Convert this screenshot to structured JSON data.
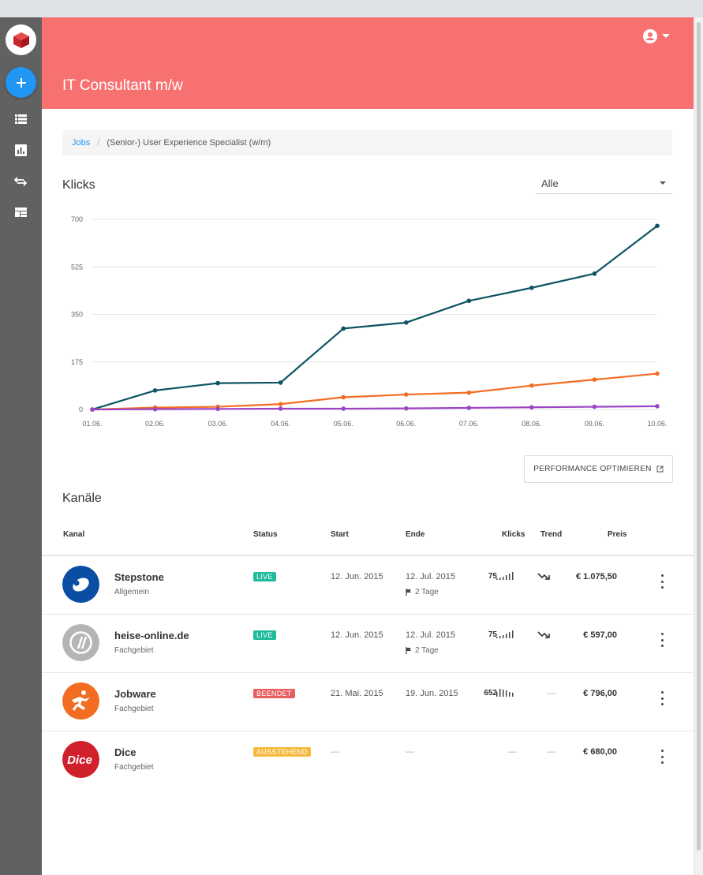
{
  "app": {
    "title": "IT Consultant m/w"
  },
  "sidebar": {
    "items": [
      {
        "name": "add",
        "icon": "plus-icon"
      },
      {
        "name": "list",
        "icon": "list-icon"
      },
      {
        "name": "stats",
        "icon": "bar-chart-icon"
      },
      {
        "name": "transfer",
        "icon": "swap-icon"
      },
      {
        "name": "dashboard",
        "icon": "dashboard-icon"
      }
    ]
  },
  "breadcrumb": {
    "root": "Jobs",
    "separator": "/",
    "current": "(Senior-) User Experience Specialist (w/m)"
  },
  "chart_section": {
    "title": "Klicks",
    "filter_value": "Alle"
  },
  "chart_data": {
    "type": "line",
    "title": "",
    "xlabel": "",
    "ylabel": "",
    "categories": [
      "01.06.",
      "02.06.",
      "03.06.",
      "04.06.",
      "05.06.",
      "06.06.",
      "07.06.",
      "08.06.",
      "09.06.",
      "10.06."
    ],
    "y_ticks": [
      0,
      175,
      350,
      525,
      700
    ],
    "ylim": [
      0,
      700
    ],
    "grid": true,
    "series": [
      {
        "color": "#0c5462",
        "values": [
          0,
          70,
          97,
          99,
          298,
          320,
          400,
          448,
          500,
          676
        ]
      },
      {
        "color": "#f26c22",
        "values": [
          0,
          7,
          10,
          20,
          45,
          55,
          62,
          88,
          110,
          132
        ]
      },
      {
        "color": "#9b44c5",
        "values": [
          0,
          1,
          2,
          3,
          3,
          4,
          6,
          8,
          10,
          12
        ]
      }
    ]
  },
  "performance_button": {
    "label": "PERFORMANCE OPTIMIEREN"
  },
  "channels": {
    "title": "Kanäle",
    "columns": {
      "kanal": "Kanal",
      "status": "Status",
      "start": "Start",
      "ende": "Ende",
      "klicks": "Klicks",
      "trend": "Trend",
      "preis": "Preis"
    },
    "rows": [
      {
        "name": "Stepstone",
        "category": "Allgemein",
        "status": "LIVE",
        "status_color": "#1ebc9c",
        "start": "12. Jun. 2015",
        "end": "12. Jul. 2015",
        "remaining": "2 Tage",
        "klicks": "75",
        "trend": "down",
        "price": "€ 1.075,50",
        "logo_color": "#0a4ea3"
      },
      {
        "name": "heise-online.de",
        "category": "Fachgebiet",
        "status": "LIVE",
        "status_color": "#1ebc9c",
        "start": "12. Jun. 2015",
        "end": "12. Jul. 2015",
        "remaining": "2 Tage",
        "klicks": "75",
        "trend": "down",
        "price": "€ 597,00",
        "logo_color": "#b5b5b5"
      },
      {
        "name": "Jobware",
        "category": "Fachgebiet",
        "status": "BEENDET",
        "status_color": "#e85d5d",
        "start": "21. Mai. 2015",
        "end": "19. Jun. 2015",
        "klicks": "652",
        "trend_text": "—",
        "price": "€ 796,00",
        "logo_color": "#f26c22"
      },
      {
        "name": "Dice",
        "category": "Fachgebiet",
        "status": "AUSSTEHEND",
        "status_color": "#f6b93b",
        "start_text": "—",
        "end_text": "—",
        "klicks_text": "—",
        "trend_text": "—",
        "price": "€ 680,00",
        "logo_color": "#d0202b",
        "logo_text": "Dice"
      }
    ]
  }
}
